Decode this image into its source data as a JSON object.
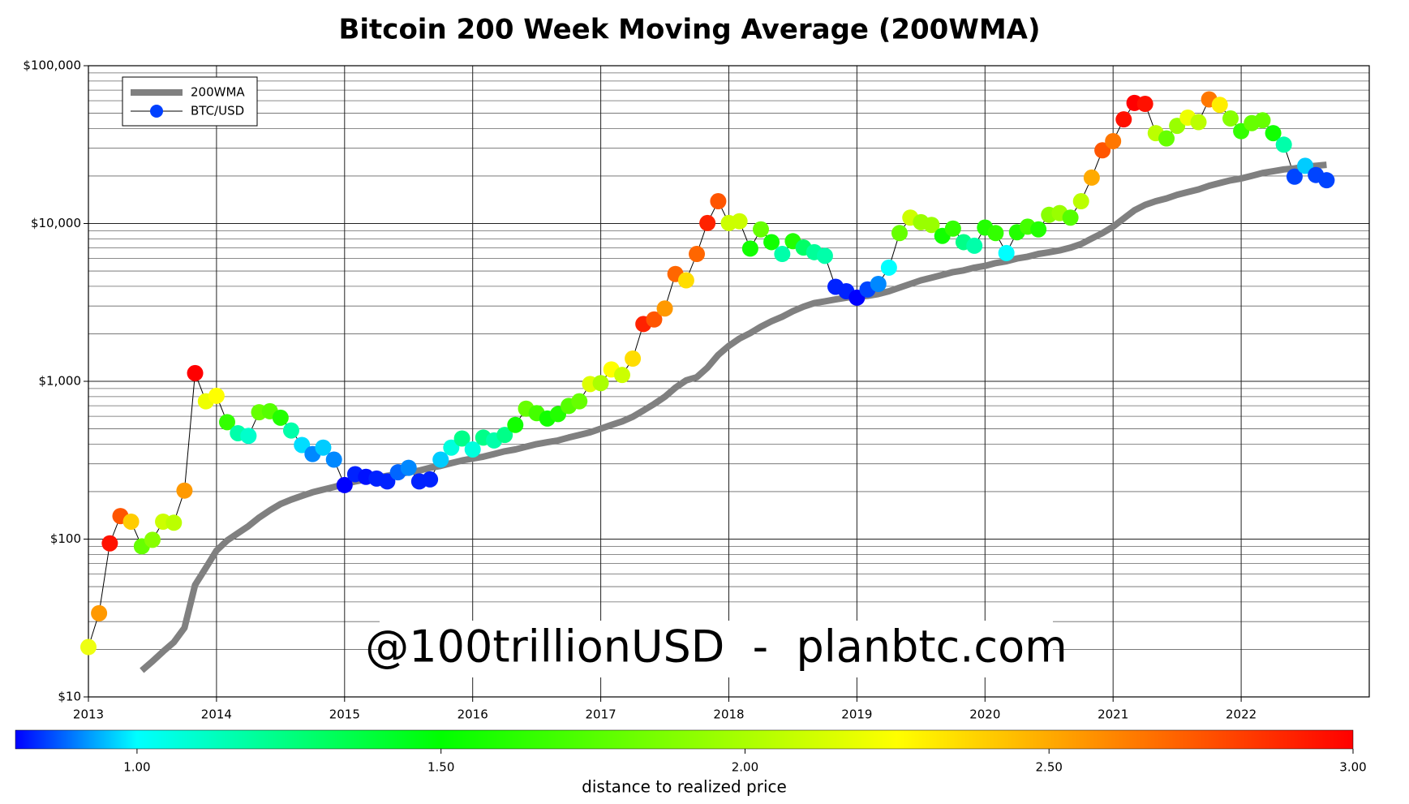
{
  "chart_data": {
    "type": "line",
    "title": "Bitcoin 200 Week Moving Average (200WMA)",
    "watermark": "@100trillionUSD  -  planbtc.com",
    "x": [
      2013,
      2013.083,
      2013.167,
      2013.25,
      2013.333,
      2013.417,
      2013.5,
      2013.583,
      2013.667,
      2013.75,
      2013.833,
      2013.917,
      2014,
      2014.083,
      2014.167,
      2014.25,
      2014.333,
      2014.417,
      2014.5,
      2014.583,
      2014.667,
      2014.75,
      2014.833,
      2014.917,
      2015,
      2015.083,
      2015.167,
      2015.25,
      2015.333,
      2015.417,
      2015.5,
      2015.583,
      2015.667,
      2015.75,
      2015.833,
      2015.917,
      2016,
      2016.083,
      2016.167,
      2016.25,
      2016.333,
      2016.417,
      2016.5,
      2016.583,
      2016.667,
      2016.75,
      2016.833,
      2016.917,
      2017,
      2017.083,
      2017.167,
      2017.25,
      2017.333,
      2017.417,
      2017.5,
      2017.583,
      2017.667,
      2017.75,
      2017.833,
      2017.917,
      2018,
      2018.083,
      2018.167,
      2018.25,
      2018.333,
      2018.417,
      2018.5,
      2018.583,
      2018.667,
      2018.75,
      2018.833,
      2018.917,
      2019,
      2019.083,
      2019.167,
      2019.25,
      2019.333,
      2019.417,
      2019.5,
      2019.583,
      2019.667,
      2019.75,
      2019.833,
      2019.917,
      2020,
      2020.083,
      2020.167,
      2020.25,
      2020.333,
      2020.417,
      2020.5,
      2020.583,
      2020.667,
      2020.75,
      2020.833,
      2020.917,
      2021,
      2021.083,
      2021.167,
      2021.25,
      2021.333,
      2021.417,
      2021.5,
      2021.583,
      2021.667,
      2021.75,
      2021.833,
      2021.917,
      2022,
      2022.083,
      2022.167,
      2022.25,
      2022.333,
      2022.417,
      2022.5,
      2022.583,
      2022.667
    ],
    "series": [
      {
        "name": "200WMA",
        "color": "#808080",
        "values": [
          null,
          null,
          null,
          null,
          null,
          14.7,
          16.8,
          19.4,
          22.2,
          27.4,
          51.2,
          65.8,
          84.6,
          98,
          109,
          121,
          137,
          152,
          167,
          178,
          188,
          198,
          206,
          214,
          223,
          232,
          239,
          245,
          252,
          258,
          265,
          272,
          283,
          291,
          303,
          315,
          324,
          333,
          346,
          360,
          370,
          385,
          400,
          411,
          422,
          440,
          457,
          475,
          501,
          529,
          557,
          596,
          654,
          718,
          798,
          912,
          1014,
          1062,
          1220,
          1469,
          1678,
          1866,
          2020,
          2218,
          2400,
          2566,
          2780,
          2970,
          3130,
          3215,
          3300,
          3390,
          3435,
          3480,
          3575,
          3722,
          3925,
          4140,
          4365,
          4540,
          4720,
          4920,
          5045,
          5254,
          5390,
          5610,
          5765,
          6000,
          6165,
          6412,
          6580,
          6760,
          7030,
          7410,
          8035,
          8695,
          9550,
          10760,
          12130,
          13130,
          13840,
          14410,
          15210,
          15820,
          16450,
          17350,
          18050,
          18780,
          19290,
          20070,
          20900,
          21440,
          22030,
          22330,
          22920,
          23230,
          23550
        ]
      },
      {
        "name": "BTC/USD",
        "color": "#000000",
        "legend_color": "#0040ff",
        "values": [
          20.7,
          33.9,
          94,
          140,
          129,
          90,
          99,
          129,
          127,
          203,
          1127,
          747,
          809,
          551,
          469,
          451,
          637,
          646,
          588,
          488,
          395,
          346,
          380,
          319,
          220,
          258,
          248,
          242,
          232,
          265,
          283,
          232,
          239,
          319,
          380,
          434,
          370,
          440,
          422,
          457,
          529,
          671,
          628,
          581,
          620,
          698,
          747,
          961,
          974,
          1189,
          1097,
          1393,
          2307,
          2466,
          2892,
          4788,
          4365,
          6412,
          10069,
          13846,
          10069,
          10330,
          6938,
          9183,
          7621,
          6412,
          7725,
          7038,
          6583,
          6240,
          3973,
          3722,
          3390,
          3822,
          4140,
          5254,
          8695,
          10900,
          10200,
          9800,
          8350,
          9290,
          7621,
          7230,
          9420,
          8695,
          6500,
          8810,
          9550,
          9183,
          11350,
          11650,
          10900,
          13846,
          19540,
          29100,
          33260,
          45700,
          58100,
          57300,
          37400,
          34600,
          41600,
          46900,
          43900,
          61200,
          56500,
          46300,
          38500,
          43300,
          45100,
          37400,
          31600,
          19800,
          23200,
          20300,
          18800
        ],
        "marker_colors": [
          "#eeff11",
          "#ff9900",
          "#ff1100",
          "#ff5500",
          "#ffcc00",
          "#66ff00",
          "#88ff00",
          "#ccff00",
          "#bbff00",
          "#ff9900",
          "#ff0000",
          "#eeff00",
          "#ffff00",
          "#33ff00",
          "#00ffaa",
          "#00ffcc",
          "#66ff00",
          "#55ff00",
          "#22ff00",
          "#00ffaa",
          "#00ddff",
          "#0088ff",
          "#00ccff",
          "#0088ff",
          "#0000ff",
          "#0022ff",
          "#0011ff",
          "#0022ff",
          "#0022ff",
          "#0066ff",
          "#0088ff",
          "#0022ff",
          "#0022ff",
          "#00ccff",
          "#00ffdd",
          "#00ff88",
          "#00ffdd",
          "#00ff88",
          "#00ffaa",
          "#00ff88",
          "#11ff00",
          "#66ff00",
          "#44ff00",
          "#11ff00",
          "#22ff00",
          "#55ff00",
          "#66ff00",
          "#ddff00",
          "#aaff00",
          "#ffff00",
          "#ccff00",
          "#ffdd00",
          "#ff2200",
          "#ff5500",
          "#ff9900",
          "#ff6600",
          "#ffdd00",
          "#ff6600",
          "#ff2200",
          "#ff5500",
          "#ccff00",
          "#ccff00",
          "#11ff00",
          "#66ff00",
          "#11ff00",
          "#00ffaa",
          "#22ff00",
          "#00ff66",
          "#00ff99",
          "#00ffaa",
          "#0022ff",
          "#0022ff",
          "#0000ff",
          "#0044ff",
          "#0088ff",
          "#00ffff",
          "#66ff00",
          "#ccff00",
          "#99ff00",
          "#99ff00",
          "#11ff00",
          "#33ff00",
          "#00ff88",
          "#00ffaa",
          "#22ff00",
          "#33ff00",
          "#00ffff",
          "#22ff00",
          "#44ff00",
          "#22ff00",
          "#88ff00",
          "#99ff00",
          "#55ff00",
          "#bbff00",
          "#ffaa00",
          "#ff5500",
          "#ff7700",
          "#ff1100",
          "#ff0000",
          "#ff1100",
          "#bbff00",
          "#66ff00",
          "#99ff00",
          "#eeff00",
          "#bbff00",
          "#ff7700",
          "#ffee00",
          "#88ff00",
          "#33ff00",
          "#66ff00",
          "#66ff00",
          "#11ff00",
          "#00ffaa",
          "#0044ff",
          "#00ccff",
          "#0044ff",
          "#0044ff"
        ]
      }
    ],
    "xlim": [
      2013,
      2023
    ],
    "xticks": [
      2013,
      2014,
      2015,
      2016,
      2017,
      2018,
      2019,
      2020,
      2021,
      2022
    ],
    "ylim": [
      10,
      100000
    ],
    "yticks": [
      {
        "value": 10,
        "label": "$10"
      },
      {
        "value": 100,
        "label": "$100"
      },
      {
        "value": 1000,
        "label": "$1,000"
      },
      {
        "value": 10000,
        "label": "$10,000"
      },
      {
        "value": 100000,
        "label": "$100,000"
      }
    ],
    "log_y": true,
    "grid": true,
    "minor_grid": true,
    "legend": "upper left",
    "colorbar": {
      "label": "distance to realized price",
      "lim": [
        0.8,
        3.0
      ],
      "ticks": [
        {
          "value": 1,
          "label": "1.00"
        },
        {
          "value": 1.5,
          "label": "1.50"
        },
        {
          "value": 2,
          "label": "2.00"
        },
        {
          "value": 2.5,
          "label": "2.50"
        },
        {
          "value": 3,
          "label": "3.00"
        }
      ],
      "stops": [
        {
          "value": 0.8,
          "color": "#0000ff"
        },
        {
          "value": 1.0,
          "color": "#00ffff"
        },
        {
          "value": 1.5,
          "color": "#00ff00"
        },
        {
          "value": 2.25,
          "color": "#ffff00"
        },
        {
          "value": 3.0,
          "color": "#ff0000"
        }
      ]
    }
  }
}
